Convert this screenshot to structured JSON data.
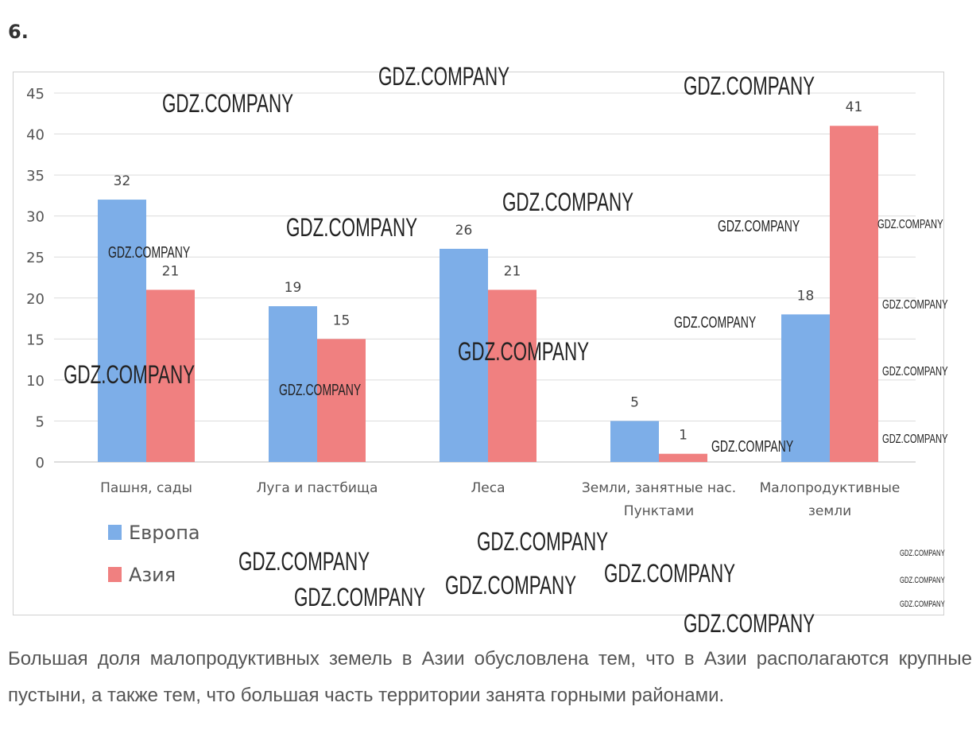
{
  "task_number": "6.",
  "chart_data": {
    "type": "bar",
    "categories": [
      "Пашня, сады",
      "Луга и пастбища",
      "Леса",
      "Земли, занятные нас. Пунктами",
      "Малопродуктивные земли"
    ],
    "category_lines": [
      [
        "Пашня, сады"
      ],
      [
        "Луга и пастбища"
      ],
      [
        "Леса"
      ],
      [
        "Земли, занятные нас.",
        "Пунктами"
      ],
      [
        "Малопродуктивные",
        "земли"
      ]
    ],
    "series": [
      {
        "name": "Европа",
        "values": [
          32,
          19,
          26,
          5,
          18
        ],
        "color": "#7daee8"
      },
      {
        "name": "Азия",
        "values": [
          21,
          15,
          21,
          1,
          41
        ],
        "color": "#f08080"
      }
    ],
    "ylim": [
      0,
      45
    ],
    "yticks": [
      0,
      5,
      10,
      15,
      20,
      25,
      30,
      35,
      40,
      45
    ],
    "grid": true,
    "legend_placement": "bottom-left",
    "data_labels": true
  },
  "paragraph": "Большая доля малопродуктивных земель в Азии обусловлена тем, что в Азии располагаются крупные пустыни, а также тем, что большая часть территории занята горными районами.",
  "watermark": "GDZ.COMPANY"
}
